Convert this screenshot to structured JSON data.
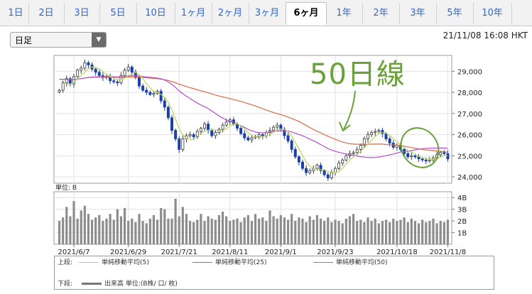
{
  "tabs": [
    {
      "label": "1日"
    },
    {
      "label": "2日"
    },
    {
      "label": "3日"
    },
    {
      "label": "5日"
    },
    {
      "label": "10日"
    },
    {
      "label": "1ヶ月"
    },
    {
      "label": "2ヶ月"
    },
    {
      "label": "3ヶ月"
    },
    {
      "label": "6ヶ月",
      "active": true
    },
    {
      "label": "1年"
    },
    {
      "label": "2年"
    },
    {
      "label": "3年"
    },
    {
      "label": "5年"
    },
    {
      "label": "10年"
    }
  ],
  "period_select": {
    "value": "日足"
  },
  "timestamp": "21/11/08 16:08 HKT",
  "annotation": {
    "text": "50日線",
    "color": "#6aa23a"
  },
  "colors": {
    "up": "#ffffff",
    "down": "#1a3fa8",
    "ma5": "#b8d65a",
    "ma25": "#b050c8",
    "ma50": "#d86a4a",
    "volume": "#8c8c8c"
  },
  "legend": {
    "upper_label": "上段:",
    "lower_label": "下段:",
    "items": [
      {
        "label": "単純移動平均(5)",
        "color": "#b8d65a"
      },
      {
        "label": "単純移動平均(25)",
        "color": "#b050c8"
      },
      {
        "label": "単純移動平均(50)",
        "color": "#d86a4a"
      }
    ],
    "volume_label": "出来高 単位:(B株/ 口/ 枚)"
  },
  "chart_data": {
    "type": "candlestick",
    "price_axis": {
      "ticks": [
        "29,000",
        "28,000",
        "27,000",
        "26,000",
        "25,000",
        "24,000"
      ],
      "tick_values": [
        29000,
        28000,
        27000,
        26000,
        25000,
        24000
      ],
      "ylim": [
        23700,
        29750
      ]
    },
    "volume_axis": {
      "unit_label": "単位: B",
      "ticks": [
        "4B",
        "3B",
        "2B",
        "1B"
      ],
      "tick_values": [
        4,
        3,
        2,
        1
      ],
      "ylim": [
        0,
        4.5
      ]
    },
    "x_labels": [
      "2021/6/7",
      "2021/6/29",
      "2021/7/21",
      "2021/8/11",
      "2021/9/1",
      "2021/9/23",
      "2021/10/18",
      "2021/11/8"
    ],
    "x_label_index": [
      4,
      19,
      33,
      47,
      61,
      76,
      93,
      107
    ],
    "close": [
      28100,
      28450,
      28650,
      28400,
      28750,
      29050,
      29150,
      29400,
      29300,
      29100,
      28950,
      28800,
      28700,
      28750,
      28550,
      28500,
      28450,
      28800,
      29050,
      29200,
      28950,
      28700,
      28300,
      28100,
      28000,
      27900,
      27950,
      28050,
      27600,
      27300,
      26800,
      26200,
      25800,
      25300,
      25800,
      25950,
      26000,
      25900,
      26150,
      26300,
      26500,
      26200,
      25950,
      26100,
      26250,
      26450,
      26600,
      26700,
      26500,
      26300,
      26050,
      25850,
      25750,
      25850,
      25900,
      26000,
      25950,
      26100,
      26200,
      26350,
      26450,
      26250,
      25950,
      25700,
      25300,
      24950,
      24700,
      24400,
      24200,
      24300,
      24400,
      24550,
      24300,
      24100,
      23950,
      24200,
      24400,
      24650,
      24800,
      25000,
      25100,
      25150,
      25300,
      25500,
      25800,
      26000,
      26100,
      26150,
      26200,
      26050,
      25800,
      25600,
      25400,
      25500,
      25300,
      25100,
      24950,
      25000,
      24950,
      24850,
      24800,
      24750,
      24800,
      24900,
      25050,
      25150,
      25100,
      24850
    ],
    "volume": [
      2.0,
      2.3,
      3.2,
      2.4,
      3.7,
      2.2,
      2.9,
      3.3,
      2.6,
      2.1,
      2.3,
      2.5,
      2.0,
      2.2,
      2.6,
      2.1,
      3.0,
      2.4,
      3.1,
      2.0,
      2.2,
      1.9,
      2.6,
      2.0,
      1.8,
      2.2,
      2.5,
      2.1,
      3.1,
      3.0,
      2.2,
      2.2,
      3.9,
      2.4,
      3.2,
      2.6,
      2.0,
      1.9,
      2.1,
      2.6,
      2.0,
      2.4,
      2.2,
      2.1,
      2.5,
      2.8,
      2.4,
      2.0,
      2.1,
      2.2,
      1.9,
      2.3,
      2.5,
      2.0,
      2.6,
      2.2,
      2.3,
      2.0,
      2.9,
      2.4,
      2.2,
      2.5,
      2.3,
      2.1,
      2.6,
      2.0,
      2.3,
      2.2,
      1.9,
      2.4,
      2.1,
      2.5,
      2.2,
      2.0,
      2.3,
      1.9,
      2.1,
      2.0,
      1.8,
      2.2,
      2.4,
      2.6,
      2.0,
      2.1,
      1.9,
      2.3,
      2.0,
      2.2,
      1.8,
      2.0,
      2.1,
      1.9,
      2.2,
      2.0,
      2.1,
      2.3,
      1.9,
      2.2,
      2.0,
      1.8,
      2.1,
      1.9,
      2.0,
      2.2,
      1.8,
      2.0,
      1.9,
      2.1
    ]
  }
}
